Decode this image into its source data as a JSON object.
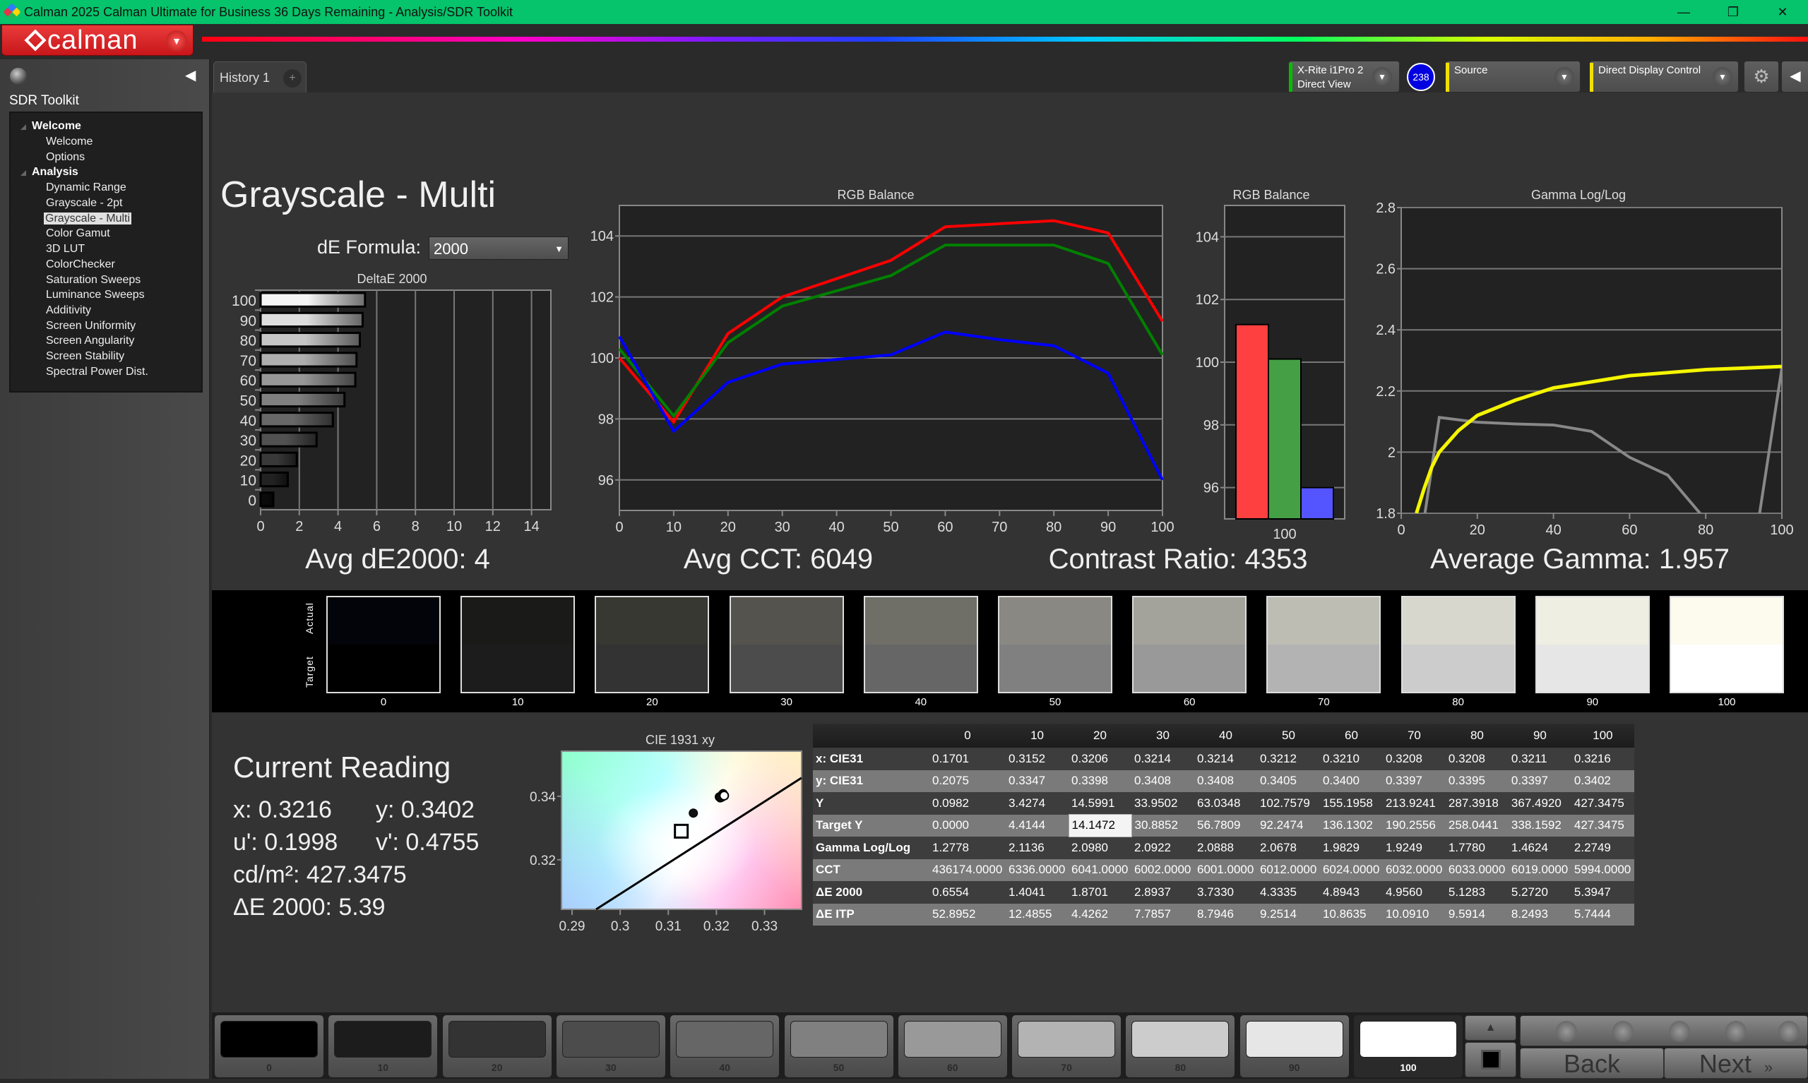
{
  "window": {
    "title": "Calman 2025 Calman Ultimate for Business 36 Days Remaining  - Analysis/SDR Toolkit",
    "minimize": "—",
    "restore": "❐",
    "close": "✕"
  },
  "brand": {
    "logo_text": "calman",
    "menu_icon": "chevron-down-icon"
  },
  "sidebar": {
    "title": "SDR Toolkit",
    "selected": "Grayscale - Multi",
    "groups": [
      {
        "label": "Welcome",
        "items": [
          "Welcome",
          "Options"
        ]
      },
      {
        "label": "Analysis",
        "items": [
          "Dynamic Range",
          "Grayscale - 2pt",
          "Grayscale - Multi",
          "Color Gamut",
          "3D LUT",
          "ColorChecker",
          "Saturation Sweeps",
          "Luminance Sweeps",
          "Additivity",
          "Screen Uniformity",
          "Screen Angularity",
          "Screen Stability",
          "Spectral Power Dist."
        ]
      }
    ]
  },
  "tabs": {
    "items": [
      {
        "label": "History 1"
      }
    ],
    "add_label": "+"
  },
  "toolbar": {
    "meter": {
      "line1": "X-Rite i1Pro 2",
      "line2": "Direct View",
      "badge": "238",
      "status_color": "#00c000",
      "badge_color": "#0000e0"
    },
    "source": {
      "label": "Source",
      "status_color": "#f0e000"
    },
    "display": {
      "label": "Direct Display Control",
      "status_color": "#f0e000"
    },
    "settings_icon": "gear-icon",
    "collapse_icon": "chevron-left-icon"
  },
  "page": {
    "title": "Grayscale - Multi",
    "de_formula_label": "dE Formula:",
    "de_formula_value": "2000"
  },
  "stats": {
    "avg_de": "Avg dE2000: 4",
    "avg_cct": "Avg CCT: 6049",
    "contrast": "Contrast Ratio: 4353",
    "avg_gamma": "Average Gamma: 1.957"
  },
  "swatches": {
    "actual_label": "Actual",
    "target_label": "Target",
    "items": [
      {
        "label": "0",
        "actual": "#030409",
        "target": "#000000"
      },
      {
        "label": "10",
        "actual": "#1a1a18",
        "target": "#1c1c1c"
      },
      {
        "label": "20",
        "actual": "#373832",
        "target": "#333333"
      },
      {
        "label": "30",
        "actual": "#55534d",
        "target": "#4c4c4c"
      },
      {
        "label": "40",
        "actual": "#6f6e67",
        "target": "#666666"
      },
      {
        "label": "50",
        "actual": "#898882",
        "target": "#808080"
      },
      {
        "label": "60",
        "actual": "#a4a39b",
        "target": "#999999"
      },
      {
        "label": "70",
        "actual": "#bebdb4",
        "target": "#b3b3b3"
      },
      {
        "label": "80",
        "actual": "#d8d7cd",
        "target": "#cccccc"
      },
      {
        "label": "90",
        "actual": "#efeee2",
        "target": "#e6e6e6"
      },
      {
        "label": "100",
        "actual": "#fcfbee",
        "target": "#ffffff"
      }
    ]
  },
  "current_reading": {
    "title": "Current Reading",
    "x": "x: 0.3216",
    "y": "y: 0.3402",
    "u": "u': 0.1998",
    "v": "v': 0.4755",
    "lum": "cd/m²: 427.3475",
    "de": "ΔE 2000: 5.39"
  },
  "table": {
    "columns": [
      "",
      "0",
      "10",
      "20",
      "30",
      "40",
      "50",
      "60",
      "70",
      "80",
      "90",
      "100"
    ],
    "highlight": {
      "row": 3,
      "col": 2
    },
    "rows": [
      {
        "label": "x: CIE31",
        "values": [
          "0.1701",
          "0.3152",
          "0.3206",
          "0.3214",
          "0.3214",
          "0.3212",
          "0.3210",
          "0.3208",
          "0.3208",
          "0.3211",
          "0.3216"
        ]
      },
      {
        "label": "y: CIE31",
        "values": [
          "0.2075",
          "0.3347",
          "0.3398",
          "0.3408",
          "0.3408",
          "0.3405",
          "0.3400",
          "0.3397",
          "0.3395",
          "0.3397",
          "0.3402"
        ]
      },
      {
        "label": "Y",
        "values": [
          "0.0982",
          "3.4274",
          "14.5991",
          "33.9502",
          "63.0348",
          "102.7579",
          "155.1958",
          "213.9241",
          "287.3918",
          "367.4920",
          "427.3475"
        ]
      },
      {
        "label": "Target Y",
        "values": [
          "0.0000",
          "4.4144",
          "14.1472",
          "30.8852",
          "56.7809",
          "92.2474",
          "136.1302",
          "190.2556",
          "258.0441",
          "338.1592",
          "427.3475"
        ]
      },
      {
        "label": "Gamma Log/Log",
        "values": [
          "1.2778",
          "2.1136",
          "2.0980",
          "2.0922",
          "2.0888",
          "2.0678",
          "1.9829",
          "1.9249",
          "1.7780",
          "1.4624",
          "2.2749"
        ]
      },
      {
        "label": "CCT",
        "values": [
          "436174.0000",
          "6336.0000",
          "6041.0000",
          "6002.0000",
          "6001.0000",
          "6012.0000",
          "6024.0000",
          "6032.0000",
          "6033.0000",
          "6019.0000",
          "5994.0000"
        ]
      },
      {
        "label": "ΔE 2000",
        "values": [
          "0.6554",
          "1.4041",
          "1.8701",
          "2.8937",
          "3.7330",
          "4.3335",
          "4.8943",
          "4.9560",
          "5.1283",
          "5.2720",
          "5.3947"
        ]
      },
      {
        "label": "ΔE ITP",
        "values": [
          "52.8952",
          "12.4855",
          "4.4262",
          "7.7857",
          "8.7946",
          "9.2514",
          "10.8635",
          "10.0910",
          "9.5914",
          "8.2493",
          "5.7444"
        ]
      }
    ]
  },
  "bottom": {
    "selected": "100",
    "back": "Back",
    "next": "Next",
    "patches": [
      {
        "label": "0",
        "color": "#000000"
      },
      {
        "label": "10",
        "color": "#1c1c1c"
      },
      {
        "label": "20",
        "color": "#333333"
      },
      {
        "label": "30",
        "color": "#4c4c4c"
      },
      {
        "label": "40",
        "color": "#666666"
      },
      {
        "label": "50",
        "color": "#808080"
      },
      {
        "label": "60",
        "color": "#999999"
      },
      {
        "label": "70",
        "color": "#b3b3b3"
      },
      {
        "label": "80",
        "color": "#cccccc"
      },
      {
        "label": "90",
        "color": "#e6e6e6"
      },
      {
        "label": "100",
        "color": "#ffffff"
      }
    ]
  },
  "chart_data": [
    {
      "type": "bar",
      "orientation": "horizontal",
      "title": "DeltaE 2000",
      "categories": [
        "0",
        "10",
        "20",
        "30",
        "40",
        "50",
        "60",
        "70",
        "80",
        "90",
        "100"
      ],
      "values": [
        0.6554,
        1.4041,
        1.8701,
        2.8937,
        3.733,
        4.3335,
        4.8943,
        4.956,
        5.1283,
        5.272,
        5.3947
      ],
      "xlim": [
        0,
        15
      ],
      "xticks": [
        0,
        2,
        4,
        6,
        8,
        10,
        12,
        14
      ],
      "grid": true
    },
    {
      "type": "line",
      "title": "RGB Balance",
      "x": [
        0,
        10,
        20,
        30,
        40,
        50,
        60,
        70,
        80,
        90,
        100
      ],
      "ylim": [
        95,
        105
      ],
      "yticks": [
        96,
        98,
        100,
        102,
        104
      ],
      "xticks": [
        0,
        10,
        20,
        30,
        40,
        50,
        60,
        70,
        80,
        90,
        100
      ],
      "grid": true,
      "series": [
        {
          "color": "#ff0000",
          "values": [
            100.0,
            97.9,
            100.8,
            102.0,
            102.6,
            103.2,
            104.3,
            104.4,
            104.5,
            104.1,
            101.2
          ]
        },
        {
          "color": "#008000",
          "values": [
            100.3,
            98.1,
            100.5,
            101.7,
            102.2,
            102.7,
            103.7,
            103.7,
            103.7,
            103.1,
            100.1
          ]
        },
        {
          "color": "#0000ff",
          "values": [
            100.7,
            97.6,
            99.2,
            99.8,
            99.95,
            100.1,
            100.85,
            100.6,
            100.4,
            99.5,
            96.0
          ]
        }
      ]
    },
    {
      "type": "bar",
      "title": "RGB Balance",
      "categories": [
        "100"
      ],
      "ylim": [
        95,
        105
      ],
      "yticks": [
        96,
        98,
        100,
        102,
        104
      ],
      "grid": true,
      "series": [
        {
          "color": "#ff4040",
          "values": [
            101.2
          ]
        },
        {
          "color": "#45a045",
          "values": [
            100.1
          ]
        },
        {
          "color": "#5555ff",
          "values": [
            96.0
          ]
        }
      ]
    },
    {
      "type": "line",
      "title": "Gamma Log/Log",
      "xlim": [
        0,
        100
      ],
      "ylim": [
        1.8,
        2.8
      ],
      "xticks": [
        0,
        20,
        40,
        60,
        80,
        100
      ],
      "yticks": [
        1.8,
        2,
        2.2,
        2.4,
        2.6,
        2.8
      ],
      "grid": true,
      "series": [
        {
          "color": "#f5f500",
          "x": [
            4,
            6,
            8,
            10,
            15,
            20,
            30,
            40,
            50,
            60,
            70,
            80,
            90,
            100
          ],
          "values": [
            1.8,
            1.88,
            1.95,
            2.0,
            2.07,
            2.12,
            2.17,
            2.21,
            2.23,
            2.25,
            2.26,
            2.27,
            2.275,
            2.28
          ]
        },
        {
          "color": "#888888",
          "x": [
            0,
            10,
            20,
            30,
            40,
            50,
            60,
            70,
            80,
            90,
            100
          ],
          "values": [
            1.2778,
            2.1136,
            2.098,
            2.0922,
            2.0888,
            2.0678,
            1.9829,
            1.9249,
            1.778,
            1.4624,
            2.2749
          ]
        }
      ]
    },
    {
      "type": "scatter",
      "title": "CIE 1931 xy",
      "xlim": [
        0.2878,
        0.3377
      ],
      "ylim": [
        0.3044,
        0.3542
      ],
      "xticks": [
        0.29,
        0.3,
        0.31,
        0.32,
        0.33
      ],
      "yticks": [
        0.32,
        0.34
      ],
      "target": [
        0.3127,
        0.329
      ],
      "points": [
        [
          0.3152,
          0.3347
        ],
        [
          0.3206,
          0.3398
        ],
        [
          0.3214,
          0.3408
        ],
        [
          0.3214,
          0.3408
        ],
        [
          0.3212,
          0.3405
        ],
        [
          0.321,
          0.34
        ],
        [
          0.3208,
          0.3397
        ],
        [
          0.3208,
          0.3395
        ],
        [
          0.3211,
          0.3397
        ],
        [
          0.3216,
          0.3402
        ]
      ],
      "locus": [
        [
          0.295,
          0.3044
        ],
        [
          0.3377,
          0.3458
        ]
      ]
    }
  ]
}
